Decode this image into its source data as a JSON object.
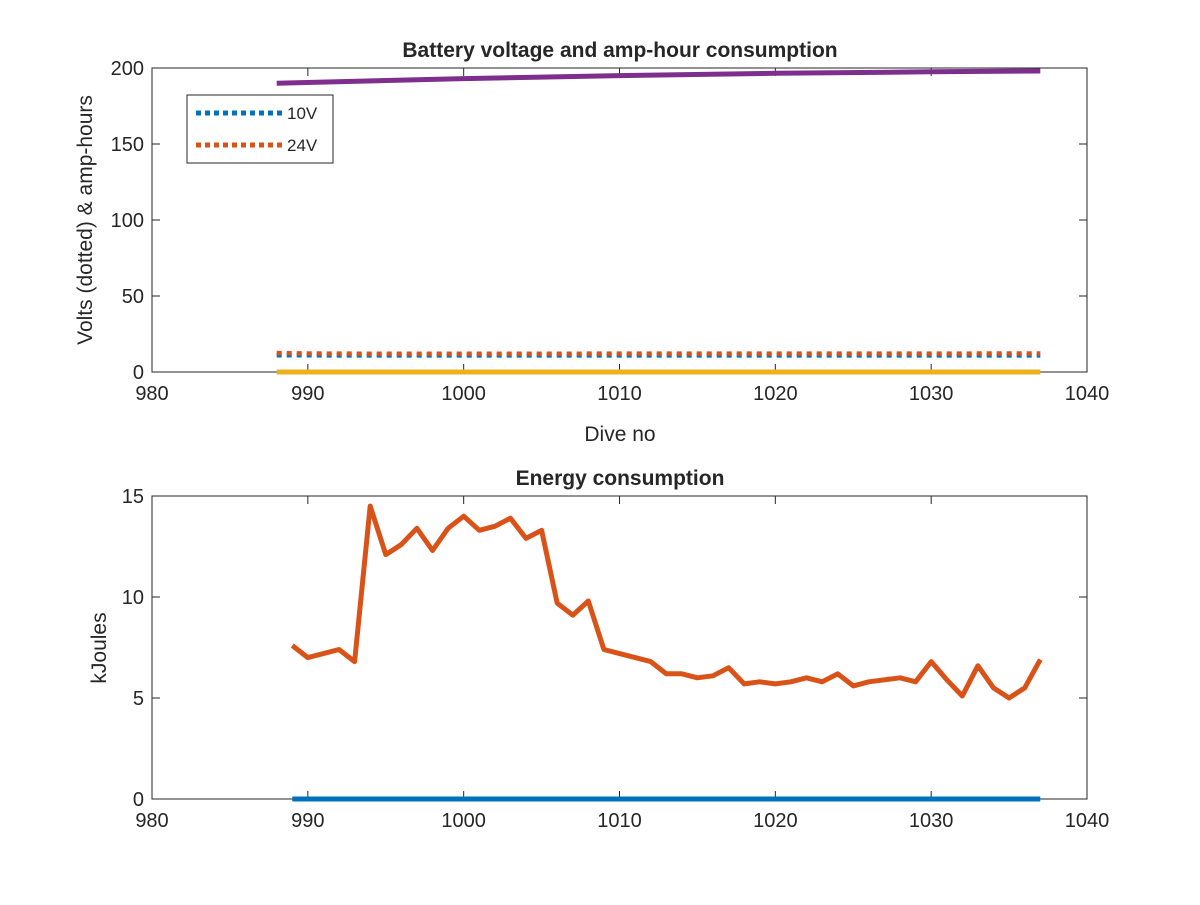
{
  "chart_data": [
    {
      "type": "line",
      "title": "Battery voltage and amp-hour consumption",
      "xlabel": "Dive no",
      "ylabel": "Volts (dotted) & amp-hours",
      "xlim": [
        980,
        1040
      ],
      "ylim": [
        0,
        200
      ],
      "xticks": [
        980,
        990,
        1000,
        1010,
        1020,
        1030,
        1040
      ],
      "yticks": [
        0,
        50,
        100,
        150,
        200
      ],
      "grid": false,
      "legend_position": "top-left",
      "series": [
        {
          "name": "10V",
          "color": "#0072BD",
          "style": "dotted",
          "x": [
            988,
            990,
            995,
            1000,
            1005,
            1010,
            1015,
            1020,
            1025,
            1030,
            1037
          ],
          "y": [
            11,
            11,
            10.9,
            10.9,
            10.9,
            10.9,
            10.9,
            10.9,
            10.9,
            10.9,
            10.9
          ]
        },
        {
          "name": "24V",
          "color": "#D95319",
          "style": "dotted",
          "x": [
            988,
            990,
            995,
            1000,
            1005,
            1010,
            1015,
            1020,
            1025,
            1030,
            1037
          ],
          "y": [
            12.5,
            12.2,
            12,
            12,
            12,
            12.1,
            12.1,
            12.1,
            12.1,
            12.1,
            12.2
          ]
        },
        {
          "color": "#EDB120",
          "style": "solid",
          "x": [
            988,
            1037
          ],
          "y": [
            0,
            0
          ]
        },
        {
          "color": "#7E2F8E",
          "style": "solid",
          "x": [
            988,
            1000,
            1010,
            1020,
            1030,
            1037
          ],
          "y": [
            190,
            193,
            195,
            196.5,
            197.5,
            198
          ]
        }
      ]
    },
    {
      "type": "line",
      "title": "Energy consumption",
      "xlabel": "",
      "ylabel": "kJoules",
      "xlim": [
        980,
        1040
      ],
      "ylim": [
        0,
        15
      ],
      "xticks": [
        980,
        990,
        1000,
        1010,
        1020,
        1030,
        1040
      ],
      "yticks": [
        0,
        5,
        10,
        15
      ],
      "grid": false,
      "series": [
        {
          "color": "#0072BD",
          "style": "solid",
          "x": [
            989,
            1037
          ],
          "y": [
            0,
            0
          ]
        },
        {
          "color": "#D95319",
          "style": "solid",
          "x": [
            989,
            990,
            991,
            992,
            993,
            994,
            995,
            996,
            997,
            998,
            999,
            1000,
            1001,
            1002,
            1003,
            1004,
            1005,
            1006,
            1007,
            1008,
            1009,
            1010,
            1011,
            1012,
            1013,
            1014,
            1015,
            1016,
            1017,
            1018,
            1019,
            1020,
            1021,
            1022,
            1023,
            1024,
            1025,
            1026,
            1027,
            1028,
            1029,
            1030,
            1031,
            1032,
            1033,
            1034,
            1035,
            1036,
            1037
          ],
          "y": [
            7.6,
            7.0,
            7.2,
            7.4,
            6.8,
            14.5,
            12.1,
            12.6,
            13.4,
            12.3,
            13.4,
            14.0,
            13.3,
            13.5,
            13.9,
            12.9,
            13.3,
            9.7,
            9.1,
            9.8,
            7.4,
            7.2,
            7.0,
            6.8,
            6.2,
            6.2,
            6.0,
            6.1,
            6.5,
            5.7,
            5.8,
            5.7,
            5.8,
            6.0,
            5.8,
            6.2,
            5.6,
            5.8,
            5.9,
            6.0,
            5.8,
            6.8,
            5.9,
            5.1,
            6.6,
            5.5,
            5.0,
            5.5,
            6.9
          ]
        }
      ]
    }
  ]
}
